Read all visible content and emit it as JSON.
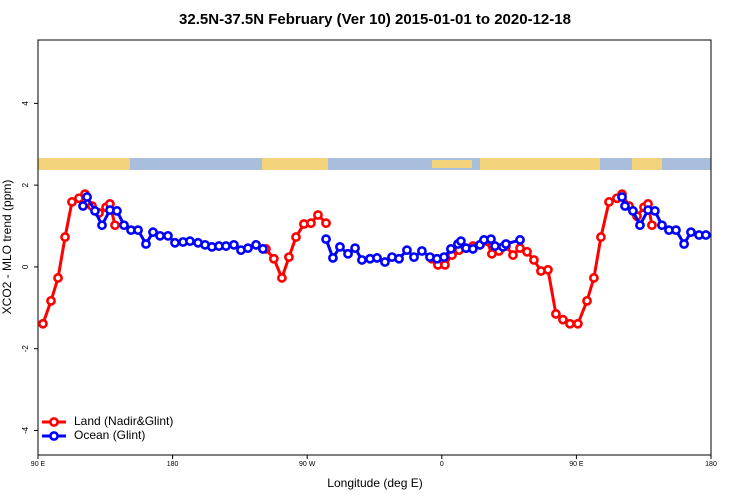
{
  "chart_data": {
    "type": "line",
    "title": "32.5N-37.5N February (Ver 10)   2015-01-01 to 2020-12-18",
    "xlabel": "Longitude (deg E)",
    "ylabel": "XCO2 - MLO trend (ppm)",
    "xlim": [
      90,
      540
    ],
    "ylim": [
      -4.6,
      5.55
    ],
    "xticks": [
      {
        "value": 90,
        "label": "90 E"
      },
      180,
      {
        "value": 270,
        "label": "90 W"
      },
      {
        "value": 360,
        "label": "0"
      },
      {
        "value": 450,
        "label": "90 E"
      },
      {
        "value": 540,
        "label": "180"
      }
    ],
    "yticks": [
      -4,
      -2,
      0,
      2,
      4
    ],
    "legend": "bottom-left",
    "series": [
      {
        "name": "Land (Nadir&Glint)",
        "color": "#ff0000",
        "x": [
          93.3,
          98.7,
          103.4,
          108.1,
          112.7,
          117.4,
          121.4,
          126.1,
          130.8,
          135.5,
          138.1,
          141.5,
          null,
          242.4,
          247.7,
          253.1,
          257.8,
          262.5,
          267.8,
          272.5,
          277.2,
          282.6,
          null,
          353.4,
          357.4,
          362.1,
          366.8,
          371.5,
          376.2,
          380.8,
          385.5,
          390.2,
          393.5,
          398.2,
          402.9,
          407.6,
          412.3,
          417.0,
          421.6,
          426.3,
          431.0,
          436.3,
          441.0,
          445.7,
          451.0,
          457.1,
          461.7,
          466.4,
          471.8,
          477.1,
          480.5,
          485.2,
          490.5,
          495.2,
          497.9,
          500.5
        ],
        "values": [
          -1.39,
          -0.83,
          -0.27,
          0.73,
          1.59,
          1.68,
          1.78,
          1.49,
          1.32,
          1.46,
          1.54,
          1.02,
          null,
          0.44,
          0.2,
          -0.27,
          0.24,
          0.73,
          1.05,
          1.07,
          1.27,
          1.07,
          null,
          0.2,
          0.05,
          0.05,
          0.29,
          0.41,
          0.46,
          0.51,
          0.54,
          0.63,
          0.32,
          0.39,
          0.51,
          0.29,
          0.46,
          0.37,
          0.17,
          -0.1,
          -0.07,
          -1.15,
          -1.29,
          -1.39,
          -1.39,
          -0.83,
          -0.27,
          0.73,
          1.59,
          1.68,
          1.78,
          1.49,
          1.24,
          1.46,
          1.54,
          1.02
        ]
      },
      {
        "name": "Ocean (Glint)",
        "color": "#0000ff",
        "x": [
          120.1,
          122.8,
          128.1,
          132.8,
          138.1,
          142.8,
          147.5,
          152.2,
          156.9,
          162.2,
          166.9,
          171.6,
          176.9,
          181.6,
          187.0,
          191.6,
          197.0,
          201.7,
          206.3,
          211.0,
          215.7,
          221.0,
          225.7,
          230.4,
          235.8,
          240.4,
          null,
          282.6,
          287.2,
          291.9,
          297.3,
          302.0,
          306.6,
          312.0,
          316.7,
          322.0,
          326.7,
          331.4,
          336.7,
          341.4,
          346.7,
          352.1,
          356.8,
          361.5,
          366.1,
          370.8,
          372.8,
          376.2,
          380.8,
          385.5,
          388.2,
          392.9,
          395.6,
          400.9,
          402.9,
          412.3,
          null,
          480.5,
          482.5,
          487.8,
          492.5,
          497.9,
          502.5,
          507.2,
          511.9,
          516.6,
          522.0,
          526.6,
          532.0,
          536.6
        ],
        "values": [
          1.49,
          1.71,
          1.37,
          1.02,
          1.39,
          1.37,
          1.02,
          0.9,
          0.9,
          0.56,
          0.85,
          0.76,
          0.76,
          0.59,
          0.61,
          0.63,
          0.59,
          0.54,
          0.49,
          0.51,
          0.51,
          0.54,
          0.41,
          0.46,
          0.54,
          0.44,
          null,
          0.68,
          0.22,
          0.49,
          0.32,
          0.46,
          0.17,
          0.2,
          0.22,
          0.12,
          0.24,
          0.2,
          0.41,
          0.24,
          0.39,
          0.24,
          0.2,
          0.24,
          0.44,
          0.56,
          0.63,
          0.46,
          0.44,
          0.54,
          0.66,
          0.68,
          0.51,
          0.49,
          0.56,
          0.66,
          null,
          1.71,
          1.49,
          1.37,
          1.02,
          1.39,
          1.37,
          1.02,
          0.9,
          0.9,
          0.56,
          0.85,
          0.78,
          0.78
        ]
      }
    ]
  }
}
